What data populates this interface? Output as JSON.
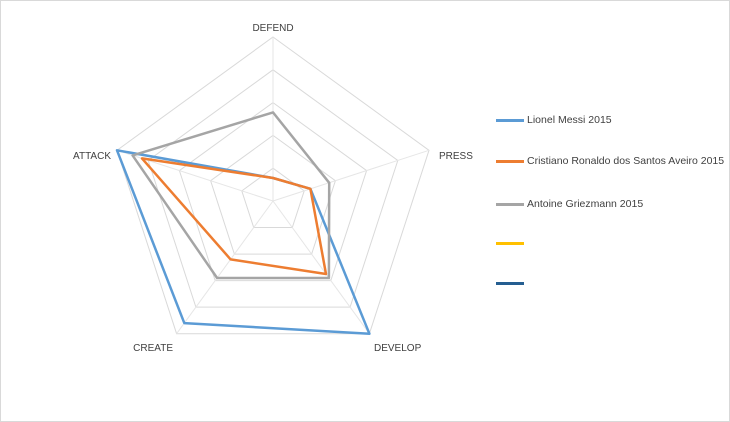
{
  "chart_data": {
    "type": "radar",
    "title": "",
    "axes": [
      "DEFEND",
      "PRESS",
      "DEVELOP",
      "CREATE",
      "ATTACK"
    ],
    "range": [
      0,
      100
    ],
    "gridlines": 5,
    "series": [
      {
        "name": "Lionel Messi 2015",
        "color": "#5b9bd5",
        "values": [
          14,
          24,
          100,
          92,
          100
        ]
      },
      {
        "name": "Cristiano Ronaldo dos Santos Aveiro 2015",
        "color": "#ed7d31",
        "values": [
          14,
          24,
          55,
          44,
          84
        ]
      },
      {
        "name": "Antoine Griezmann 2015",
        "color": "#a5a5a5",
        "values": [
          54,
          36,
          58,
          58,
          90
        ]
      },
      {
        "name": "",
        "color": "#ffc000",
        "values": []
      },
      {
        "name": "",
        "color": "#255e91",
        "values": []
      }
    ]
  }
}
